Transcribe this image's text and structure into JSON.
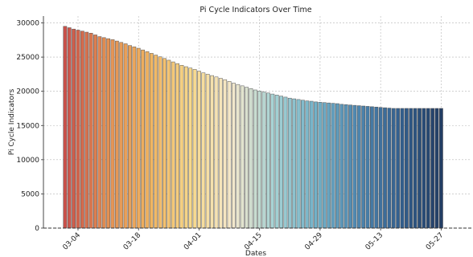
{
  "chart_data": {
    "type": "bar",
    "title": "Pi Cycle Indicators Over Time",
    "xlabel": "Dates",
    "ylabel": "Pi Cycle Indicators",
    "ylim": [
      0,
      31000
    ],
    "yticks": [
      0,
      5000,
      10000,
      15000,
      20000,
      25000,
      30000
    ],
    "xlim": [
      "2024-02-25",
      "2024-06-03"
    ],
    "xticks": [
      {
        "date": "2024-03-04",
        "label": "03-04"
      },
      {
        "date": "2024-03-18",
        "label": "03-18"
      },
      {
        "date": "2024-04-01",
        "label": "04-01"
      },
      {
        "date": "2024-04-15",
        "label": "04-15"
      },
      {
        "date": "2024-04-29",
        "label": "04-29"
      },
      {
        "date": "2024-05-13",
        "label": "05-13"
      },
      {
        "date": "2024-05-27",
        "label": "05-27"
      }
    ],
    "grid": true,
    "start_date": "2024-03-01",
    "bar_width_days": 0.8,
    "values": [
      29500,
      29300,
      29100,
      28950,
      28800,
      28650,
      28500,
      28250,
      28000,
      27850,
      27700,
      27550,
      27350,
      27150,
      26950,
      26700,
      26500,
      26300,
      26050,
      25800,
      25550,
      25300,
      25050,
      24800,
      24550,
      24300,
      24050,
      23800,
      23600,
      23400,
      23200,
      22950,
      22700,
      22500,
      22300,
      22100,
      21900,
      21700,
      21450,
      21200,
      21000,
      20800,
      20600,
      20400,
      20200,
      20050,
      19900,
      19750,
      19600,
      19450,
      19300,
      19150,
      19000,
      18900,
      18800,
      18700,
      18600,
      18550,
      18450,
      18400,
      18350,
      18300,
      18250,
      18200,
      18100,
      18050,
      18000,
      17950,
      17900,
      17850,
      17800,
      17750,
      17700,
      17650,
      17600,
      17550,
      17500,
      17500,
      17500,
      17500,
      17500,
      17500,
      17500,
      17500,
      17500,
      17500,
      17500,
      17500
    ],
    "color_stops": [
      "#c9514a",
      "#e38f52",
      "#f0b25f",
      "#f7d88a",
      "#f4e8cc",
      "#a5d2d4",
      "#72b1c8",
      "#4e86af",
      "#33608f",
      "#223d64"
    ]
  }
}
